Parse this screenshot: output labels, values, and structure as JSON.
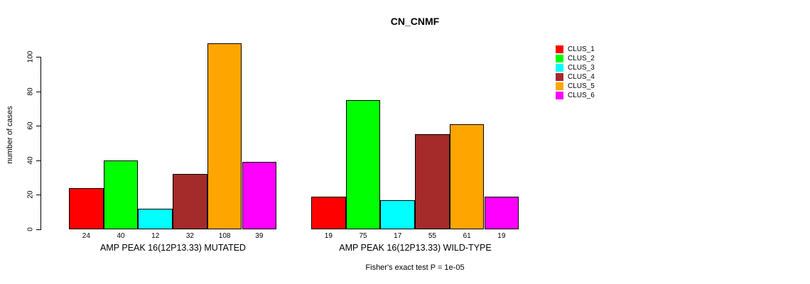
{
  "figure": {
    "title": "CN_CNMF",
    "ylabel": "number of cases",
    "annotation": "Fisher's exact test P = 1e-05"
  },
  "chart_data": {
    "type": "bar",
    "title": "CN_CNMF",
    "xlabel": "",
    "ylabel": "number of cases",
    "ylim": [
      0,
      110
    ],
    "yticks": [
      0,
      20,
      40,
      60,
      80,
      100
    ],
    "grid": false,
    "legend_position": "right",
    "bar_value_labels": true,
    "categories": [
      "AMP PEAK 16(12P13.33) MUTATED",
      "AMP PEAK 16(12P13.33) WILD-TYPE"
    ],
    "series": [
      {
        "name": "CLUS_1",
        "color": "#FF0000",
        "values": [
          24,
          19
        ]
      },
      {
        "name": "CLUS_2",
        "color": "#00FF00",
        "values": [
          40,
          75
        ]
      },
      {
        "name": "CLUS_3",
        "color": "#00FFFF",
        "values": [
          12,
          17
        ]
      },
      {
        "name": "CLUS_4",
        "color": "#A52A2A",
        "values": [
          32,
          55
        ]
      },
      {
        "name": "CLUS_5",
        "color": "#FFA500",
        "values": [
          108,
          61
        ]
      },
      {
        "name": "CLUS_6",
        "color": "#FF00FF",
        "values": [
          39,
          19
        ]
      }
    ],
    "annotation": "Fisher's exact test P = 1e-05"
  }
}
